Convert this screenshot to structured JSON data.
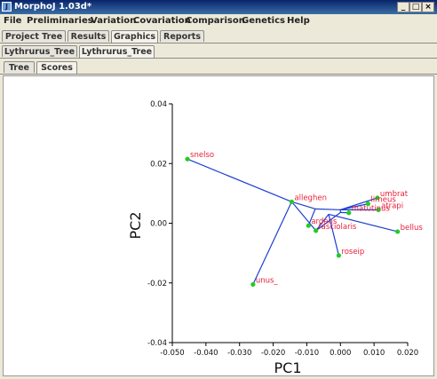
{
  "window": {
    "title": "MorphoJ 1.03d*",
    "icon_label": "J",
    "minimize": "_",
    "maximize": "□",
    "close": "×"
  },
  "menu": [
    "File",
    "Preliminaries",
    "Variation",
    "Covariation",
    "Comparison",
    "Genetics",
    "Help"
  ],
  "main_tabs": [
    "Project Tree",
    "Results",
    "Graphics",
    "Reports"
  ],
  "graphic_tabs": [
    "Lythrurus_Tree",
    "Lythrurus_Tree"
  ],
  "view_tabs": [
    "Tree",
    "Scores"
  ],
  "chart_data": {
    "type": "scatter",
    "xlabel": "PC1",
    "ylabel": "PC2",
    "xlim": [
      -0.05,
      0.02
    ],
    "ylim": [
      -0.04,
      0.04
    ],
    "xticks": [
      "-0.050",
      "-0.040",
      "-0.030",
      "-0.020",
      "-0.010",
      "0.000",
      "0.010",
      "0.020"
    ],
    "yticks": [
      "0.04",
      "0.02",
      "0.00",
      "-0.02",
      "-0.04"
    ],
    "point_color": "#22cc22",
    "label_color": "#e8203a",
    "line_color": "#1e3fd0",
    "points": [
      {
        "label": "snelso",
        "x": -0.0455,
        "y": 0.0215
      },
      {
        "label": "alleghen",
        "x": -0.0145,
        "y": 0.0072
      },
      {
        "label": "umbrat",
        "x": 0.011,
        "y": 0.0085
      },
      {
        "label": "lirneus",
        "x": 0.0082,
        "y": 0.0065
      },
      {
        "label": "atrapi",
        "x": 0.0113,
        "y": 0.0045
      },
      {
        "label": "matutinus",
        "x": 0.0025,
        "y": 0.0035
      },
      {
        "label": "bellus",
        "x": 0.017,
        "y": -0.0028
      },
      {
        "label": "ardens",
        "x": -0.0095,
        "y": -0.0008
      },
      {
        "label": "fasciolaris",
        "x": -0.0073,
        "y": -0.0025
      },
      {
        "label": "roseip",
        "x": -0.0005,
        "y": -0.0108
      },
      {
        "label": "unus_",
        "x": -0.026,
        "y": -0.0205
      }
    ],
    "tree_nodes": {
      "a": {
        "x": -0.0145,
        "y": 0.0072
      },
      "b": {
        "x": -0.0075,
        "y": 0.0048
      },
      "c": {
        "x": 0.0,
        "y": 0.0045
      },
      "d": {
        "x": -0.0035,
        "y": 0.003
      },
      "e": {
        "x": 0.0,
        "y": 0.0036
      }
    },
    "tree_edges": [
      [
        "snelso",
        "a"
      ],
      [
        "unus_",
        "a"
      ],
      [
        "a",
        "b"
      ],
      [
        "b",
        "ardens"
      ],
      [
        "b",
        "c"
      ],
      [
        "a",
        "fasciolaris"
      ],
      [
        "fasciolaris",
        "d"
      ],
      [
        "d",
        "roseip"
      ],
      [
        "d",
        "bellus"
      ],
      [
        "c",
        "umbrat"
      ],
      [
        "c",
        "lirneus"
      ],
      [
        "c",
        "atrapi"
      ],
      [
        "c",
        "e"
      ],
      [
        "e",
        "matutinus"
      ],
      [
        "e",
        "fasciolaris"
      ]
    ]
  }
}
